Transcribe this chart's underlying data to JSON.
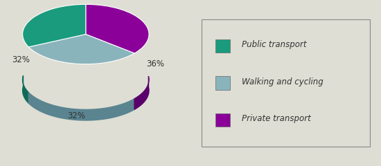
{
  "labels": [
    "Public transport",
    "Walking and cycling",
    "Private transport"
  ],
  "values": [
    32,
    32,
    36
  ],
  "colors": [
    "#1a9b7d",
    "#8ab4bc",
    "#8b0099"
  ],
  "shadow_colors": [
    "#0f6b57",
    "#5a8490",
    "#5a006b"
  ],
  "pct_labels": [
    "32%",
    "32%",
    "36%"
  ],
  "background_color": "#deded4",
  "legend_labels": [
    "Public transport",
    "Walking and cycling",
    "Private transport"
  ],
  "startangle": 90,
  "pct_color": "#333333",
  "legend_bg": "#deded4",
  "legend_edge": "#888888"
}
